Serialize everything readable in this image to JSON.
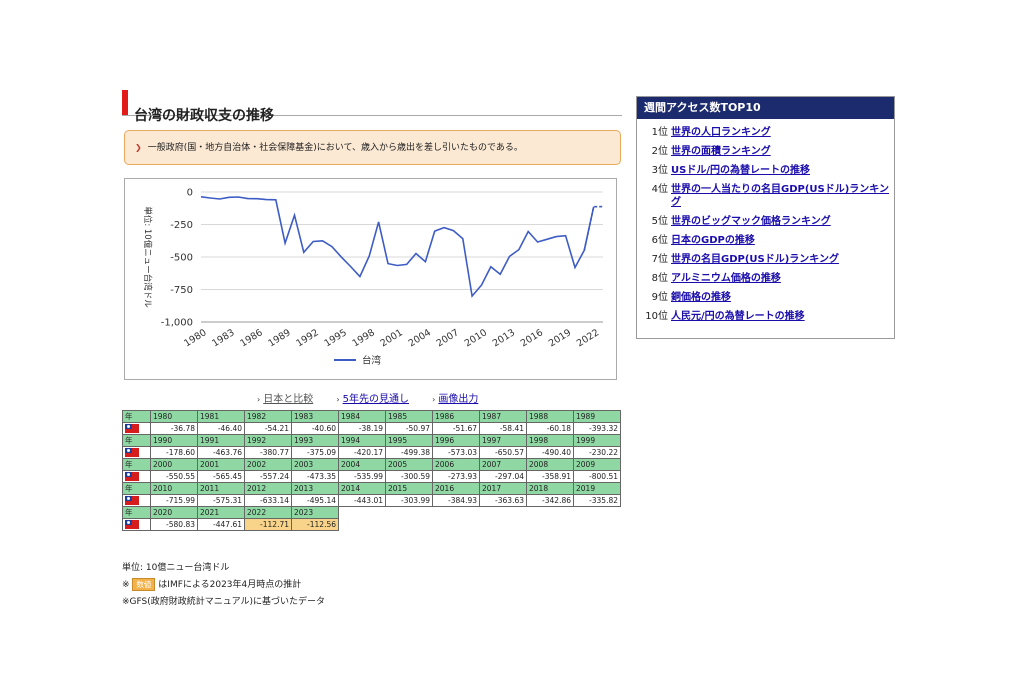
{
  "page": {
    "title": "台湾の財政収支の推移",
    "description": "一般政府(国・地方自治体・社会保障基金)において、歳入から歳出を差し引いたものである。"
  },
  "chart_data": {
    "type": "line",
    "ylabel": "単位: 10億ニュー台湾ドル",
    "ylim": [
      -1000,
      0
    ],
    "yticks": [
      "0",
      "-250",
      "-500",
      "-750",
      "-1,000"
    ],
    "xtick_labels": [
      "1980",
      "1983",
      "1986",
      "1989",
      "1992",
      "1995",
      "1998",
      "2001",
      "2004",
      "2007",
      "2010",
      "2013",
      "2016",
      "2019",
      "2022"
    ],
    "x": [
      1980,
      1981,
      1982,
      1983,
      1984,
      1985,
      1986,
      1987,
      1988,
      1989,
      1990,
      1991,
      1992,
      1993,
      1994,
      1995,
      1996,
      1997,
      1998,
      1999,
      2000,
      2001,
      2002,
      2003,
      2004,
      2005,
      2006,
      2007,
      2008,
      2009,
      2010,
      2011,
      2012,
      2013,
      2014,
      2015,
      2016,
      2017,
      2018,
      2019,
      2020,
      2021,
      2022,
      2023
    ],
    "series": [
      {
        "name": "台湾",
        "color": "#3d5cc4",
        "values": [
          -36.78,
          -46.4,
          -54.21,
          -40.6,
          -38.19,
          -50.97,
          -51.67,
          -58.41,
          -60.18,
          -393.32,
          -178.6,
          -463.76,
          -380.77,
          -375.09,
          -420.17,
          -499.38,
          -573.03,
          -650.57,
          -490.4,
          -230.22,
          -550.55,
          -565.45,
          -557.24,
          -473.35,
          -535.99,
          -300.59,
          -273.93,
          -297.04,
          -358.91,
          -800.51,
          -715.99,
          -575.31,
          -633.14,
          -495.14,
          -443.01,
          -303.99,
          -384.93,
          -363.63,
          -342.86,
          -335.82,
          -580.83,
          -447.61,
          -112.71,
          -112.56
        ],
        "estimate_from": 2022
      }
    ],
    "legend": "bottom",
    "grid": true
  },
  "links": {
    "compare": "日本と比較",
    "forecast": "5年先の見通し",
    "export": "画像出力"
  },
  "table": {
    "year_header": "年",
    "rows": [
      {
        "years": [
          "1980",
          "1981",
          "1982",
          "1983",
          "1984",
          "1985",
          "1986",
          "1987",
          "1988",
          "1989"
        ],
        "values": [
          "-36.78",
          "-46.40",
          "-54.21",
          "-40.60",
          "-38.19",
          "-50.97",
          "-51.67",
          "-58.41",
          "-60.18",
          "-393.32"
        ]
      },
      {
        "years": [
          "1990",
          "1991",
          "1992",
          "1993",
          "1994",
          "1995",
          "1996",
          "1997",
          "1998",
          "1999"
        ],
        "values": [
          "-178.60",
          "-463.76",
          "-380.77",
          "-375.09",
          "-420.17",
          "-499.38",
          "-573.03",
          "-650.57",
          "-490.40",
          "-230.22"
        ]
      },
      {
        "years": [
          "2000",
          "2001",
          "2002",
          "2003",
          "2004",
          "2005",
          "2006",
          "2007",
          "2008",
          "2009"
        ],
        "values": [
          "-550.55",
          "-565.45",
          "-557.24",
          "-473.35",
          "-535.99",
          "-300.59",
          "-273.93",
          "-297.04",
          "-358.91",
          "-800.51"
        ]
      },
      {
        "years": [
          "2010",
          "2011",
          "2012",
          "2013",
          "2014",
          "2015",
          "2016",
          "2017",
          "2018",
          "2019"
        ],
        "values": [
          "-715.99",
          "-575.31",
          "-633.14",
          "-495.14",
          "-443.01",
          "-303.99",
          "-384.93",
          "-363.63",
          "-342.86",
          "-335.82"
        ]
      },
      {
        "years": [
          "2020",
          "2021",
          "2022",
          "2023"
        ],
        "values": [
          "-580.83",
          "-447.61",
          "-112.71",
          "-112.56"
        ],
        "estimates": [
          false,
          false,
          true,
          true
        ]
      }
    ]
  },
  "notes": {
    "unit": "単位: 10億ニュー台湾ドル",
    "estimate_prefix": "※",
    "estimate_badge": "数値",
    "estimate_text": "はIMFによる2023年4月時点の推計",
    "gfs": "※GFS(政府財政統計マニュアル)に基づいたデータ"
  },
  "sidebar": {
    "title": "週間アクセス数TOP10",
    "items": [
      {
        "rank": "1位",
        "label": "世界の人口ランキング"
      },
      {
        "rank": "2位",
        "label": "世界の面積ランキング"
      },
      {
        "rank": "3位",
        "label": "USドル/円の為替レートの推移"
      },
      {
        "rank": "4位",
        "label": "世界の一人当たりの名目GDP(USドル)ランキング"
      },
      {
        "rank": "5位",
        "label": "世界のビッグマック価格ランキング"
      },
      {
        "rank": "6位",
        "label": "日本のGDPの推移"
      },
      {
        "rank": "7位",
        "label": "世界の名目GDP(USドル)ランキング"
      },
      {
        "rank": "8位",
        "label": "アルミニウム価格の推移"
      },
      {
        "rank": "9位",
        "label": "銅価格の推移"
      },
      {
        "rank": "10位",
        "label": "人民元/円の為替レートの推移"
      }
    ]
  }
}
